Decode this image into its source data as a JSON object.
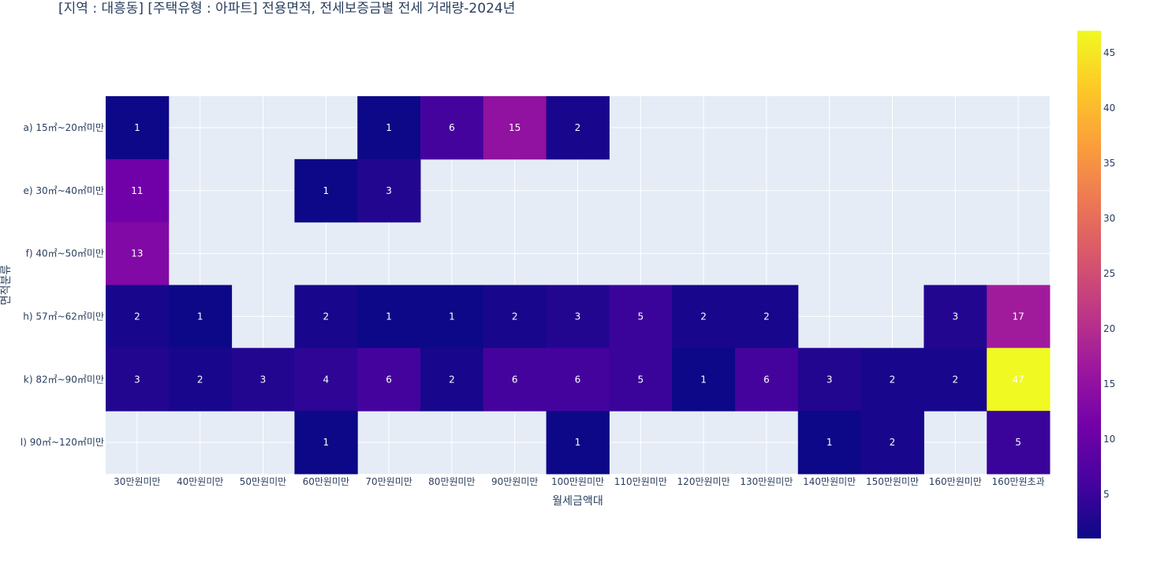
{
  "chart_data": {
    "type": "heatmap",
    "title": "[지역 : 대흥동] [주택유형 : 아파트] 전용면적, 전세보증금별 전세 거래량-2024년",
    "xlabel": "월세금액대",
    "ylabel": "면적분류",
    "x": [
      "30만원미만",
      "40만원미만",
      "50만원미만",
      "60만원미만",
      "70만원미만",
      "80만원미만",
      "90만원미만",
      "100만원미만",
      "110만원미만",
      "120만원미만",
      "130만원미만",
      "140만원미만",
      "150만원미만",
      "160만원미만",
      "160만원초과"
    ],
    "y": [
      "a) 15㎡~20㎡미만",
      "e) 30㎡~40㎡미만",
      "f) 40㎡~50㎡미만",
      "h) 57㎡~62㎡미만",
      "k) 82㎡~90㎡미만",
      "l) 90㎡~120㎡미만"
    ],
    "z": [
      [
        1,
        null,
        null,
        null,
        1,
        6,
        15,
        2,
        null,
        null,
        null,
        null,
        null,
        null,
        null
      ],
      [
        11,
        null,
        null,
        1,
        3,
        null,
        null,
        null,
        null,
        null,
        null,
        null,
        null,
        null,
        null
      ],
      [
        13,
        null,
        null,
        null,
        null,
        null,
        null,
        null,
        null,
        null,
        null,
        null,
        null,
        null,
        null
      ],
      [
        2,
        1,
        null,
        2,
        1,
        1,
        2,
        3,
        5,
        2,
        2,
        null,
        null,
        3,
        17
      ],
      [
        3,
        2,
        3,
        4,
        6,
        2,
        6,
        6,
        5,
        1,
        6,
        3,
        2,
        2,
        47
      ],
      [
        null,
        null,
        null,
        1,
        null,
        null,
        null,
        1,
        null,
        null,
        null,
        1,
        2,
        null,
        5
      ]
    ],
    "zrange": [
      1,
      47
    ],
    "colorbar_ticks": [
      5,
      10,
      15,
      20,
      25,
      30,
      35,
      40,
      45
    ],
    "colorscale": [
      "#0d0887",
      "#46039f",
      "#7201a8",
      "#9c179e",
      "#bd3786",
      "#d8576b",
      "#ed7953",
      "#fb9f3a",
      "#fdca26",
      "#f0f921"
    ],
    "plot_bgcolor": "#e5ecf6",
    "gridlines": true
  }
}
